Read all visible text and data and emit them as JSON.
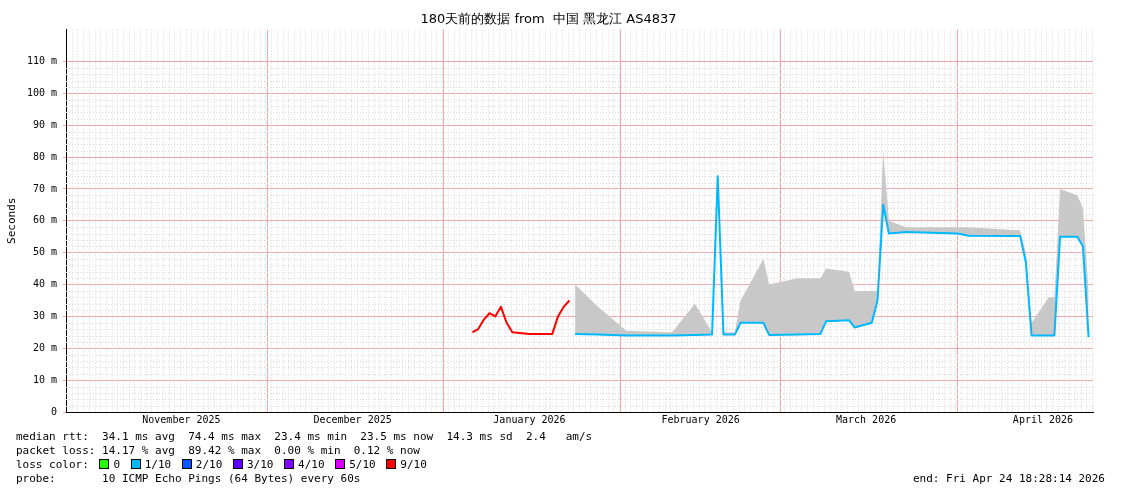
{
  "chart_data": {
    "type": "line",
    "title": "180天前的数据 from  中国 黑龙江 AS4837",
    "ylabel": "Seconds",
    "xlim": [
      "2025-10-26T18:28",
      "2026-04-24T18:28"
    ],
    "xticks": [
      {
        "value": "2025-11-16",
        "label": "November 2025"
      },
      {
        "value": "2025-12-01",
        "label": null
      },
      {
        "value": "2025-12-16",
        "label": "December 2025"
      },
      {
        "value": "2026-01-01",
        "label": null
      },
      {
        "value": "2026-01-16",
        "label": "January 2026"
      },
      {
        "value": "2026-02-01",
        "label": null
      },
      {
        "value": "2026-02-15",
        "label": "February 2026"
      },
      {
        "value": "2026-03-01",
        "label": null
      },
      {
        "value": "2026-03-16",
        "label": "March 2026"
      },
      {
        "value": "2026-04-01",
        "label": null
      },
      {
        "value": "2026-04-16",
        "label": "April 2026"
      }
    ],
    "ylim": [
      0,
      120
    ],
    "yticks": [
      0,
      {
        "value": 10,
        "label": "10 m"
      },
      {
        "value": 20,
        "label": "20 m"
      },
      {
        "value": 30,
        "label": "30 m"
      },
      {
        "value": 40,
        "label": "40 m"
      },
      {
        "value": 50,
        "label": "50 m"
      },
      {
        "value": 60,
        "label": "60 m"
      },
      {
        "value": 70,
        "label": "70 m"
      },
      {
        "value": 80,
        "label": "80 m"
      },
      {
        "value": 90,
        "label": "90 m"
      },
      {
        "value": 100,
        "label": "100 m"
      },
      {
        "value": 110,
        "label": "110 m"
      }
    ],
    "grid": true,
    "legend": "bottom",
    "legend_title": "loss color:",
    "series": [
      {
        "name": "0",
        "color": "#26ff00"
      },
      {
        "name": "1/10",
        "color": "#00b8ff",
        "x": [
          "2026-01-24",
          "2026-01-28",
          "2026-02-02",
          "2026-02-10",
          "2026-02-14",
          "2026-02-17",
          "2026-02-18",
          "2026-02-19",
          "2026-02-21",
          "2026-02-22",
          "2026-02-26",
          "2026-02-27",
          "2026-03-04",
          "2026-03-08",
          "2026-03-09",
          "2026-03-13",
          "2026-03-14",
          "2026-03-17",
          "2026-03-18",
          "2026-03-19",
          "2026-03-20",
          "2026-03-23",
          "2026-04-01",
          "2026-04-03",
          "2026-04-12",
          "2026-04-13",
          "2026-04-14",
          "2026-04-17",
          "2026-04-18",
          "2026-04-19",
          "2026-04-22",
          "2026-04-23",
          "2026-04-24"
        ],
        "values": [
          24.5,
          24.3,
          24,
          24,
          24.2,
          24.3,
          74,
          24.3,
          24.3,
          28,
          28,
          24.2,
          24.3,
          24.5,
          28.5,
          28.8,
          26.5,
          28,
          35,
          65,
          56,
          56.5,
          56,
          55.3,
          55.2,
          47,
          24,
          24,
          24,
          55,
          55,
          52,
          23.5
        ],
        "lower": [
          24.5,
          24.3,
          24,
          24,
          24.2,
          24.3,
          74,
          24.3,
          24.3,
          28,
          28,
          24.2,
          24.3,
          24.5,
          28.5,
          28.8,
          26.5,
          28,
          35,
          65,
          56,
          56.5,
          56,
          55.3,
          55.2,
          47,
          24,
          24,
          24,
          55,
          55,
          52,
          23.5
        ],
        "upper": [
          40,
          33,
          25.5,
          25,
          34,
          25,
          74,
          25,
          25,
          35,
          48,
          40,
          42,
          42,
          45,
          44,
          38,
          38,
          38,
          82,
          60,
          58,
          58,
          58,
          57,
          50,
          28,
          36,
          36,
          70,
          68,
          64,
          38
        ]
      },
      {
        "name": "2/10",
        "color": "#0059ff"
      },
      {
        "name": "3/10",
        "color": "#5e00ff"
      },
      {
        "name": "4/10",
        "color": "#7e00ff"
      },
      {
        "name": "5/10",
        "color": "#dd00ff"
      },
      {
        "name": "9/10",
        "color": "#ff0000",
        "x": [
          "2026-01-06",
          "2026-01-07",
          "2026-01-08",
          "2026-01-09",
          "2026-01-10",
          "2026-01-11",
          "2026-01-12",
          "2026-01-13",
          "2026-01-16",
          "2026-01-20",
          "2026-01-21",
          "2026-01-22",
          "2026-01-23"
        ],
        "values": [
          25,
          26,
          29,
          31,
          30,
          33,
          28,
          25,
          24.5,
          24.5,
          30,
          33,
          35
        ]
      }
    ],
    "annotations": [
      "median rtt:  34.1 ms avg  74.4 ms max  23.4 ms min  23.5 ms now  14.3 ms sd  2.4   am/s",
      "packet loss: 14.17 % avg  89.42 % max  0.00 % min  0.12 % now",
      "probe:       10 ICMP Echo Pings (64 Bytes) every 60s",
      "end: Fri Apr 24 18:28:14 2026"
    ]
  }
}
